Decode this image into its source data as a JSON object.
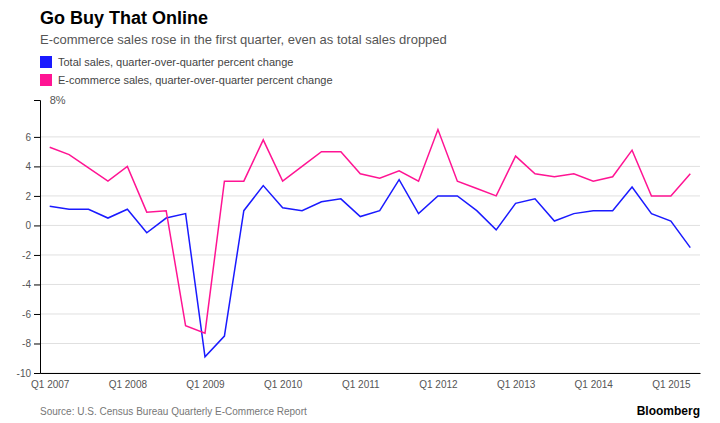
{
  "chart_data": {
    "type": "line",
    "title": "Go Buy That Online",
    "subtitle": "E-commerce sales rose in the first quarter, even as total sales dropped",
    "source": "Source: U.S. Census Bureau Quarterly E-Commerce Report",
    "credit": "Bloomberg",
    "categories": [
      "Q1 2007",
      null,
      null,
      null,
      "Q1 2008",
      null,
      null,
      null,
      "Q1 2009",
      null,
      null,
      null,
      "Q1 2010",
      null,
      null,
      null,
      "Q1 2011",
      null,
      null,
      null,
      "Q1 2012",
      null,
      null,
      null,
      "Q1 2013",
      null,
      null,
      null,
      "Q1 2014",
      null,
      null,
      null,
      "Q1 2015",
      null
    ],
    "series": [
      {
        "name": "Total sales, quarter-over-quarter percent change",
        "color": "#1a1aff",
        "values": [
          1.3,
          1.1,
          1.1,
          0.5,
          1.1,
          -0.5,
          0.5,
          0.8,
          -8.9,
          -7.5,
          1.0,
          2.7,
          1.2,
          1.0,
          1.6,
          1.8,
          0.6,
          1.0,
          3.1,
          0.8,
          2.0,
          2.0,
          1.0,
          -0.3,
          1.5,
          1.8,
          0.3,
          0.8,
          1.0,
          1.0,
          2.6,
          0.8,
          0.3,
          -1.5
        ]
      },
      {
        "name": "E-commerce sales, quarter-over-quarter percent change",
        "color": "#ff1493",
        "values": [
          5.3,
          4.8,
          3.9,
          3.0,
          4.0,
          0.9,
          1.0,
          -6.8,
          -7.3,
          3.0,
          3.0,
          5.8,
          3.0,
          4.0,
          5.0,
          5.0,
          3.5,
          3.2,
          3.7,
          3.0,
          6.5,
          3.0,
          2.5,
          2.0,
          4.7,
          3.5,
          3.3,
          3.5,
          3.0,
          3.3,
          5.1,
          2.0,
          2.0,
          3.5
        ]
      }
    ],
    "ylim": [
      -10,
      8.5
    ],
    "yticks": [
      -10,
      -8,
      -6,
      -4,
      -2,
      0,
      2,
      4,
      6
    ],
    "annotations": [
      {
        "text": "8%",
        "x": 0,
        "y": 8.1
      }
    ],
    "grid": true,
    "legend": "upper left"
  }
}
